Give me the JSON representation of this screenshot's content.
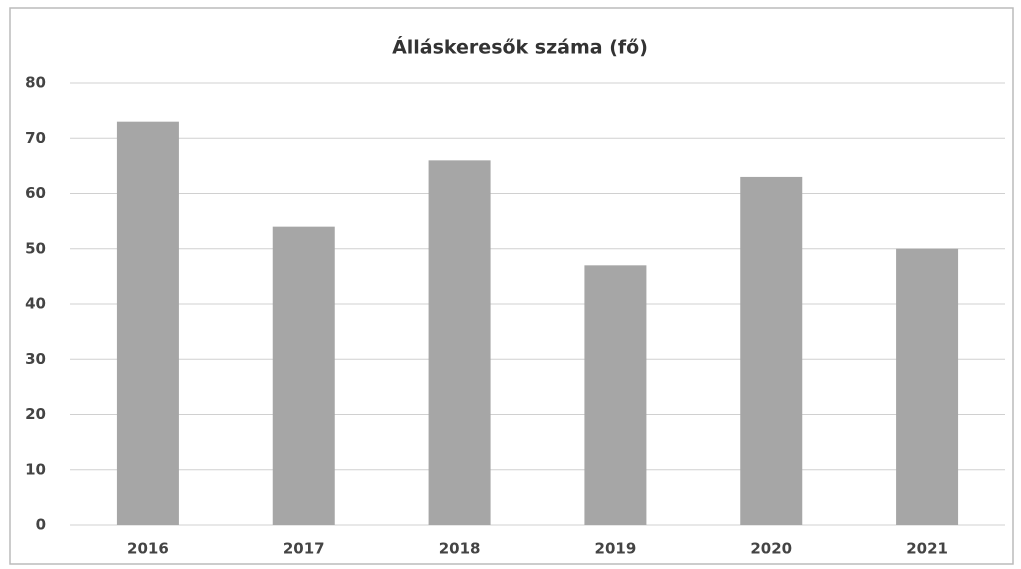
{
  "chart_data": {
    "type": "bar",
    "title": "Álláskeresők száma (fő)",
    "categories": [
      "2016",
      "2017",
      "2018",
      "2019",
      "2020",
      "2021"
    ],
    "values": [
      73,
      54,
      66,
      47,
      63,
      50
    ],
    "color": "#a6a6a6",
    "ylim": [
      0,
      80
    ],
    "yticks": [
      0,
      10,
      20,
      30,
      40,
      50,
      60,
      70,
      80
    ],
    "grid": true
  }
}
